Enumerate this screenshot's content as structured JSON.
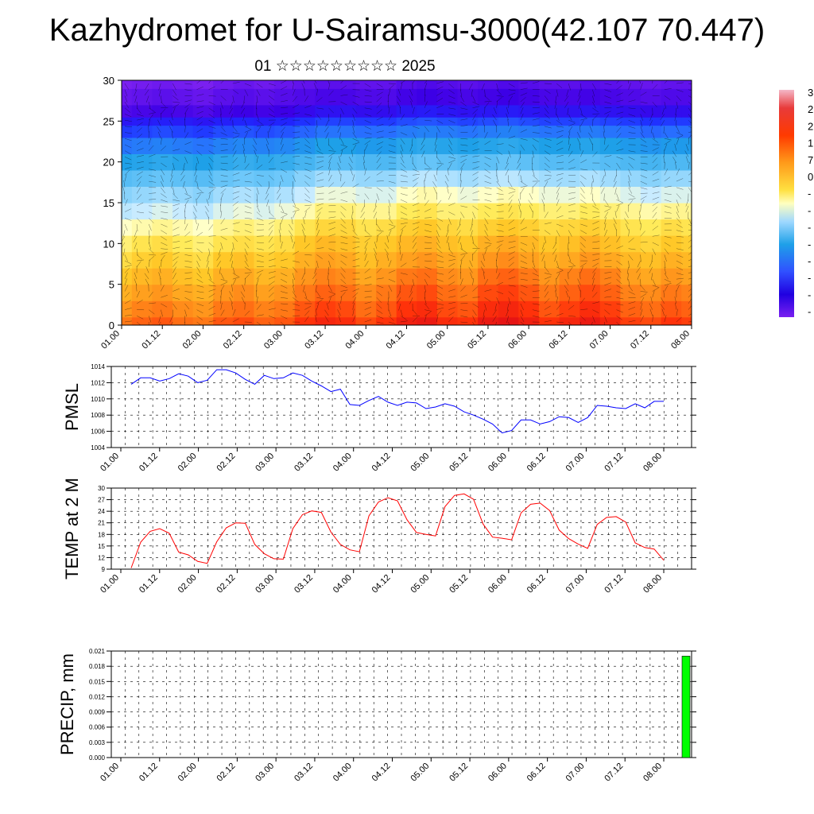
{
  "title": "Kazhydromet for U-Sairamsu-3000(42.107 70.447)",
  "subtitle": "01 ☆☆☆☆☆☆☆☆☆ 2025",
  "colorbar_labels": [
    "3",
    "2",
    "2",
    "1",
    "7",
    "0",
    "-",
    "-",
    "-",
    "-",
    "-",
    "-",
    "-",
    "-"
  ],
  "chart_data": [
    {
      "type": "heatmap",
      "name": "cross-section",
      "x": [
        "01.00",
        "01.12",
        "02.00",
        "02.12",
        "03.00",
        "03.12",
        "04.00",
        "04.12",
        "05.00",
        "05.12",
        "06.00",
        "06.12",
        "07.00",
        "07.12",
        "08.00"
      ],
      "ylim": [
        0,
        30
      ],
      "yticks": [
        0,
        5,
        10,
        15,
        20,
        25,
        30
      ],
      "levels": [
        0,
        2,
        4,
        6,
        8,
        10,
        12,
        14,
        16,
        18,
        20,
        22,
        24,
        25,
        26,
        28,
        30
      ],
      "x_positions": [
        0.0,
        0.25,
        0.5,
        0.75,
        1.0,
        1.25,
        1.5,
        1.75,
        2.0,
        2.25,
        2.5,
        2.75,
        3.0,
        3.25,
        3.5,
        3.75,
        4.0,
        4.25,
        4.5,
        4.75,
        5.0,
        5.25,
        5.5,
        5.75,
        6.0,
        6.25,
        6.5,
        6.75,
        7.0
      ],
      "values": [
        [
          18,
          20,
          21,
          19,
          18,
          21,
          22,
          20,
          21,
          24,
          26,
          25,
          22,
          24,
          27,
          28,
          25,
          24,
          28,
          29,
          27,
          24,
          26,
          28,
          26,
          23,
          22,
          24,
          23
        ],
        [
          15,
          17,
          18,
          16,
          15,
          18,
          19,
          17,
          18,
          21,
          23,
          22,
          19,
          21,
          24,
          25,
          22,
          21,
          25,
          26,
          24,
          21,
          23,
          25,
          23,
          20,
          19,
          21,
          20
        ],
        [
          12,
          14,
          15,
          13,
          12,
          15,
          16,
          14,
          15,
          18,
          20,
          19,
          16,
          18,
          21,
          22,
          19,
          18,
          22,
          23,
          21,
          18,
          20,
          22,
          20,
          17,
          16,
          18,
          17
        ],
        [
          9,
          11,
          12,
          10,
          9,
          12,
          13,
          11,
          12,
          15,
          17,
          16,
          13,
          15,
          18,
          19,
          16,
          15,
          19,
          20,
          18,
          15,
          17,
          19,
          17,
          14,
          13,
          15,
          14
        ],
        [
          6,
          8,
          9,
          7,
          6,
          9,
          10,
          8,
          9,
          12,
          14,
          13,
          10,
          12,
          14,
          15,
          13,
          12,
          15,
          16,
          14,
          12,
          13,
          15,
          13,
          11,
          10,
          12,
          11
        ],
        [
          3,
          5,
          6,
          4,
          3,
          5,
          6,
          5,
          6,
          9,
          11,
          10,
          8,
          9,
          11,
          12,
          10,
          9,
          12,
          13,
          11,
          9,
          10,
          12,
          10,
          8,
          7,
          9,
          8
        ],
        [
          0,
          1,
          2,
          1,
          0,
          2,
          3,
          2,
          3,
          5,
          7,
          7,
          5,
          6,
          8,
          9,
          7,
          6,
          8,
          9,
          8,
          6,
          7,
          8,
          7,
          5,
          4,
          6,
          5
        ],
        [
          -4,
          -3,
          -2,
          -3,
          -4,
          -2,
          -1,
          -2,
          -1,
          1,
          3,
          3,
          2,
          2,
          4,
          5,
          3,
          3,
          4,
          5,
          4,
          3,
          3,
          4,
          3,
          2,
          1,
          2,
          2
        ],
        [
          -8,
          -7,
          -6,
          -7,
          -8,
          -6,
          -5,
          -6,
          -5,
          -3,
          -1,
          -1,
          -2,
          -2,
          0,
          1,
          0,
          -1,
          0,
          1,
          0,
          -1,
          -1,
          0,
          -1,
          -2,
          -3,
          -2,
          -2
        ],
        [
          -13,
          -12,
          -11,
          -12,
          -13,
          -11,
          -10,
          -11,
          -10,
          -8,
          -6,
          -6,
          -7,
          -7,
          -5,
          -4,
          -5,
          -6,
          -5,
          -4,
          -5,
          -6,
          -6,
          -5,
          -6,
          -7,
          -8,
          -7,
          -7
        ],
        [
          -20,
          -19,
          -18,
          -19,
          -20,
          -18,
          -17,
          -18,
          -17,
          -15,
          -13,
          -13,
          -14,
          -14,
          -12,
          -11,
          -12,
          -13,
          -12,
          -11,
          -12,
          -13,
          -13,
          -12,
          -13,
          -14,
          -15,
          -14,
          -14
        ],
        [
          -27,
          -26,
          -25,
          -26,
          -27,
          -25,
          -24,
          -25,
          -24,
          -22,
          -20,
          -20,
          -21,
          -21,
          -19,
          -18,
          -19,
          -20,
          -19,
          -18,
          -19,
          -20,
          -20,
          -19,
          -20,
          -21,
          -22,
          -21,
          -21
        ],
        [
          -34,
          -33,
          -32,
          -33,
          -34,
          -32,
          -31,
          -32,
          -31,
          -29,
          -27,
          -27,
          -28,
          -28,
          -26,
          -25,
          -26,
          -27,
          -26,
          -25,
          -26,
          -27,
          -27,
          -26,
          -27,
          -28,
          -29,
          -28,
          -28
        ],
        [
          -40,
          -39,
          -38,
          -39,
          -40,
          -38,
          -37,
          -38,
          -37,
          -35,
          -33,
          -33,
          -34,
          -34,
          -32,
          -31,
          -32,
          -33,
          -32,
          -31,
          -32,
          -33,
          -33,
          -32,
          -33,
          -34,
          -35,
          -34,
          -34
        ],
        [
          -48,
          -47,
          -46,
          -47,
          -48,
          -46,
          -45,
          -46,
          -45,
          -43,
          -41,
          -41,
          -42,
          -42,
          -40,
          -39,
          -40,
          -41,
          -40,
          -39,
          -40,
          -41,
          -41,
          -40,
          -41,
          -42,
          -43,
          -42,
          -42
        ],
        [
          -52,
          -51,
          -50,
          -51,
          -52,
          -50,
          -49,
          -50,
          -49,
          -48,
          -47,
          -47,
          -48,
          -48,
          -46,
          -45,
          -46,
          -47,
          -46,
          -45,
          -46,
          -47,
          -47,
          -46,
          -47,
          -48,
          -49,
          -48,
          -48
        ],
        [
          -55,
          -54,
          -53,
          -54,
          -55,
          -53,
          -52,
          -53,
          -52,
          -51,
          -50,
          -50,
          -51,
          -51,
          -49,
          -48,
          -49,
          -50,
          -49,
          -48,
          -49,
          -50,
          -50,
          -49,
          -50,
          -51,
          -52,
          -51,
          -51
        ]
      ]
    },
    {
      "type": "line",
      "ylabel": "PMSL",
      "x": [
        "01.00",
        "01.12",
        "02.00",
        "02.12",
        "03.00",
        "03.12",
        "04.00",
        "04.12",
        "05.00",
        "05.12",
        "06.00",
        "06.12",
        "07.00",
        "07.12",
        "08.00"
      ],
      "ylim": [
        1004,
        1014
      ],
      "yticks": [
        1004,
        1006,
        1008,
        1010,
        1012,
        1014
      ],
      "series": [
        {
          "color": "#0000ff",
          "x": [
            0.0,
            0.125,
            0.25,
            0.375,
            0.5,
            0.625,
            0.75,
            0.875,
            1.0,
            1.125,
            1.25,
            1.375,
            1.5,
            1.625,
            1.75,
            1.875,
            2.0,
            2.125,
            2.25,
            2.375,
            2.5,
            2.625,
            2.75,
            2.875,
            3.0,
            3.125,
            3.25,
            3.375,
            3.5,
            3.625,
            3.75,
            3.875,
            4.0,
            4.125,
            4.25,
            4.375,
            4.5,
            4.625,
            4.75,
            4.875,
            5.0,
            5.125,
            5.25,
            5.375,
            5.5,
            5.625,
            5.75,
            5.875,
            6.0,
            6.125,
            6.25,
            6.375,
            6.5,
            6.625,
            6.75,
            6.875,
            7.0
          ],
          "values": [
            1011.8,
            1012.6,
            1012.6,
            1012.2,
            1012.5,
            1013.1,
            1012.8,
            1012.0,
            1012.3,
            1013.6,
            1013.6,
            1013.2,
            1012.4,
            1011.8,
            1012.9,
            1012.5,
            1012.6,
            1013.2,
            1012.9,
            1012.2,
            1011.6,
            1010.9,
            1011.2,
            1009.3,
            1009.2,
            1009.8,
            1010.3,
            1009.6,
            1009.2,
            1009.6,
            1009.5,
            1008.8,
            1009.0,
            1009.4,
            1009.1,
            1008.4,
            1008.0,
            1007.5,
            1006.9,
            1005.8,
            1006.1,
            1007.4,
            1007.4,
            1006.9,
            1007.2,
            1007.8,
            1007.7,
            1007.1,
            1007.7,
            1009.2,
            1009.1,
            1008.9,
            1008.8,
            1009.4,
            1008.9,
            1009.7,
            1009.7
          ]
        }
      ]
    },
    {
      "type": "line",
      "ylabel": "TEMP at 2 M",
      "x": [
        "01.00",
        "01.12",
        "02.00",
        "02.12",
        "03.00",
        "03.12",
        "04.00",
        "04.12",
        "05.00",
        "05.12",
        "06.00",
        "06.12",
        "07.00",
        "07.12",
        "08.00"
      ],
      "ylim": [
        9,
        30
      ],
      "yticks": [
        9,
        12,
        15,
        18,
        21,
        24,
        27,
        30
      ],
      "series": [
        {
          "color": "#ff0000",
          "x": [
            0.0,
            0.125,
            0.25,
            0.375,
            0.5,
            0.625,
            0.75,
            0.875,
            1.0,
            1.125,
            1.25,
            1.375,
            1.5,
            1.625,
            1.75,
            1.875,
            2.0,
            2.125,
            2.25,
            2.375,
            2.5,
            2.625,
            2.75,
            2.875,
            3.0,
            3.125,
            3.25,
            3.375,
            3.5,
            3.625,
            3.75,
            3.875,
            4.0,
            4.125,
            4.25,
            4.375,
            4.5,
            4.625,
            4.75,
            4.875,
            5.0,
            5.125,
            5.25,
            5.375,
            5.5,
            5.625,
            5.75,
            5.875,
            6.0,
            6.125,
            6.25,
            6.375,
            6.5,
            6.625,
            6.75,
            6.875,
            7.0
          ],
          "values": [
            9.3,
            16.0,
            18.8,
            19.5,
            18.3,
            13.4,
            12.7,
            11.0,
            10.5,
            16.1,
            19.7,
            21.0,
            20.9,
            15.4,
            13.0,
            11.7,
            11.6,
            19.5,
            23.1,
            24.1,
            23.7,
            18.6,
            15.4,
            14.0,
            13.5,
            22.8,
            26.4,
            27.5,
            26.7,
            21.8,
            18.5,
            18.0,
            17.6,
            25.2,
            28.1,
            28.5,
            27.1,
            20.7,
            17.3,
            17.0,
            16.6,
            23.6,
            25.8,
            26.1,
            24.2,
            19.1,
            16.9,
            15.5,
            14.4,
            20.6,
            22.4,
            22.6,
            21.2,
            15.8,
            14.6,
            14.2,
            11.3
          ]
        }
      ]
    },
    {
      "type": "bar",
      "ylabel": "PRECIP, mm",
      "x": [
        "01.00",
        "01.12",
        "02.00",
        "02.12",
        "03.00",
        "03.12",
        "04.00",
        "04.12",
        "05.00",
        "05.12",
        "06.00",
        "06.12",
        "07.00",
        "07.12",
        "08.00"
      ],
      "ylim": [
        0.0,
        0.021
      ],
      "yticks": [
        "0.000",
        "0.003",
        "0.006",
        "0.009",
        "0.012",
        "0.015",
        "0.018",
        "0.021"
      ],
      "bars": [
        {
          "x_start": 6.9,
          "x_end": 7.0,
          "value": 0.02,
          "color": "#00ff00"
        }
      ]
    }
  ]
}
